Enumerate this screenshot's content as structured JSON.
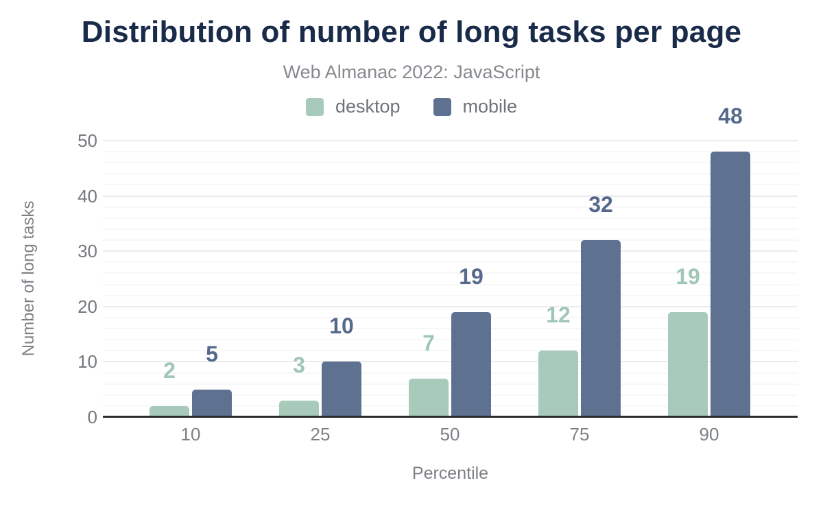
{
  "header": {
    "title": "Distribution of number of long tasks per page",
    "subtitle": "Web Almanac 2022: JavaScript"
  },
  "legend": [
    {
      "label": "desktop",
      "color": "#a7cabb"
    },
    {
      "label": "mobile",
      "color": "#5f7191"
    }
  ],
  "colors": {
    "title": "#1a2b4a",
    "subtitle": "#85898e",
    "axis_text": "#7c8085",
    "axis_line": "#2d2d2d",
    "grid_major": "#ebebeb",
    "grid_minor": "#f7f7f7",
    "background": "#ffffff"
  },
  "chart_data": {
    "type": "bar",
    "title": "Distribution of number of long tasks per page",
    "subtitle": "Web Almanac 2022: JavaScript",
    "categories": [
      "10",
      "25",
      "50",
      "75",
      "90"
    ],
    "series": [
      {
        "name": "desktop",
        "color": "#a7cabb",
        "label_color": "#a0c6b5",
        "values": [
          2,
          3,
          7,
          12,
          19
        ]
      },
      {
        "name": "mobile",
        "color": "#5f7191",
        "label_color": "#56698c",
        "values": [
          5,
          10,
          19,
          32,
          48
        ]
      }
    ],
    "xlabel": "Percentile",
    "ylabel": "Number of long tasks",
    "ylim": [
      0,
      50
    ],
    "yticks": [
      0,
      10,
      20,
      30,
      40,
      50
    ],
    "minor_grid_step": 2,
    "grid": true,
    "legend_position": "top-center",
    "value_labels": true
  }
}
